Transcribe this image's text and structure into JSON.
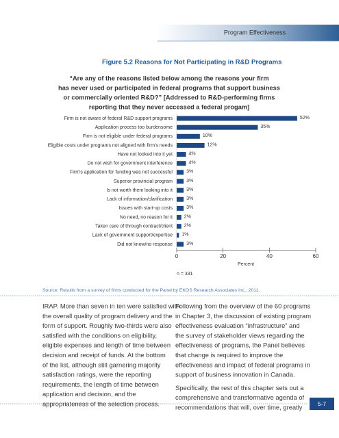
{
  "header": {
    "section": "Program Effectiveness"
  },
  "figure": {
    "title": "Figure 5.2  Reasons for Not Participating in R&D Programs",
    "question": [
      "“Are any of the reasons listed below among the reasons your firm",
      "has never used or participated in federal programs that support business",
      "or commercially oriented  R&D?” [Addressed to R&D-performing firms",
      "reporting that they never accessed a federal progam]"
    ]
  },
  "chart_data": {
    "type": "bar",
    "orientation": "horizontal",
    "categories": [
      "Firm is not aware of federal R&D support programs",
      "Application process too burdensome",
      "Firm is not eligible under federal programs",
      "Eligible costs under programs  not aligned with firm's needs",
      "Have not looked into it yet",
      "Do not wish for government interference",
      "Firm's application for funding was not successful",
      "Superior provincial program",
      "Is not worth them looking into it",
      "Lack of information/clarification",
      "Issues with start-up costs",
      "No need, no reason for it",
      "Taken care of through contract/client",
      "Lack of government support/expertise",
      "Did not know/no response"
    ],
    "values": [
      52,
      35,
      10,
      12,
      4,
      4,
      3,
      3,
      3,
      3,
      3,
      2,
      2,
      1,
      3
    ],
    "value_labels": [
      "52%",
      "35%",
      "10%",
      "12%",
      "4%",
      "4%",
      "3%",
      "3%",
      "3%",
      "3%",
      "3%",
      "2%",
      "2%",
      "1%",
      "3%"
    ],
    "color": "#1d4a86",
    "xlabel": "Percent",
    "xlim": [
      0,
      60
    ],
    "xticks": [
      0,
      20,
      40,
      60
    ],
    "note": "n = 331"
  },
  "source": "Source: Results from a survey of firms conducted for the Panel by EKOS Research Associates Inc., 2011.",
  "body": {
    "left": [
      "IRAP. More than seven in ten were satisfied with",
      "the overall quality of program delivery and the",
      "form of support. Roughly two-thirds were also",
      "satisfied with the conditions on eligibility,",
      "eligible expenses and length of time between",
      "decision and receipt of funds. At the bottom",
      "of the list, although still garnering majority",
      "satisfaction ratings, were the reporting",
      "requirements, the length of time between",
      "application and decision, and the",
      "appropriateness of the selection process."
    ],
    "right": [
      [
        "Following from the overview of the 60 programs",
        "in Chapter 3, the discussion of existing program",
        "effectiveness evaluation “infrastructure” and",
        "the survey of stakeholder views regarding the",
        "effectiveness of programs, the Panel believes",
        "that change is required to improve the",
        "effectiveness and impact of federal programs in",
        "support of business innovation in Canada."
      ],
      [
        "Specifically, the rest of this chapter sets out a",
        "comprehensive and transformative agenda of",
        "recommendations that will, over time, greatly"
      ]
    ]
  },
  "page_number": "5-7"
}
